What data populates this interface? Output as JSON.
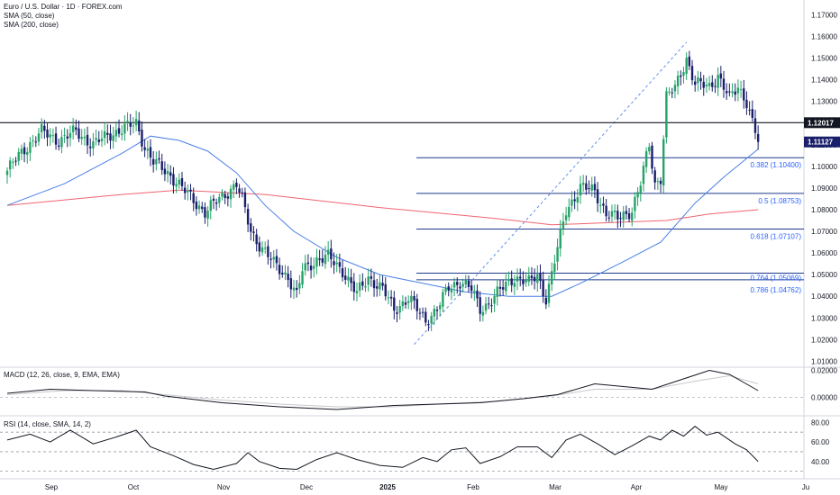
{
  "chart_data": {
    "type": "candlestick",
    "title": "Euro / U.S. Dollar · 1D · FOREX.com",
    "indicators": [
      "SMA (50, close)",
      "SMA (200, close)"
    ],
    "price_axis": {
      "range": [
        1.0085,
        1.1735
      ],
      "ticks": [
        "1.01000",
        "1.02000",
        "1.03000",
        "1.04000",
        "1.05000",
        "1.06000",
        "1.07000",
        "1.08000",
        "1.09000",
        "1.10000",
        "1.11000",
        "1.12000",
        "1.13000",
        "1.14000",
        "1.15000",
        "1.16000",
        "1.17000"
      ]
    },
    "time_axis": [
      "Sep",
      "Oct",
      "Nov",
      "Dec",
      "2025",
      "Feb",
      "Mar",
      "Apr",
      "May",
      "Ju"
    ],
    "price_labels": [
      {
        "text": "1.12017",
        "value": 1.12017,
        "style": "black"
      },
      {
        "text": "1.11127",
        "value": 1.11127,
        "style": "navy"
      }
    ],
    "horizontal_line": 1.12017,
    "fibonacci": [
      {
        "text": "0.382 (1.10400)",
        "value": 1.104
      },
      {
        "text": "0.5 (1.08753)",
        "value": 1.08753
      },
      {
        "text": "0.618 (1.07107)",
        "value": 1.07107
      },
      {
        "text": "0.764 (1.05069)",
        "value": 1.05069
      },
      {
        "text": "0.786 (1.04762)",
        "value": 1.04762
      }
    ],
    "candle_anchors": [
      [
        0,
        1.098
      ],
      [
        6,
        1.108
      ],
      [
        12,
        1.116
      ],
      [
        18,
        1.112
      ],
      [
        24,
        1.116
      ],
      [
        30,
        1.11
      ],
      [
        36,
        1.115
      ],
      [
        42,
        1.118
      ],
      [
        45,
        1.12
      ],
      [
        48,
        1.109
      ],
      [
        51,
        1.102
      ],
      [
        57,
        1.096
      ],
      [
        63,
        1.087
      ],
      [
        69,
        1.079
      ],
      [
        75,
        1.086
      ],
      [
        80,
        1.092
      ],
      [
        82,
        1.084
      ],
      [
        85,
        1.07
      ],
      [
        88,
        1.064
      ],
      [
        93,
        1.055
      ],
      [
        98,
        1.049
      ],
      [
        101,
        1.04
      ],
      [
        103,
        1.052
      ],
      [
        108,
        1.057
      ],
      [
        112,
        1.058
      ],
      [
        117,
        1.052
      ],
      [
        122,
        1.041
      ],
      [
        126,
        1.049
      ],
      [
        131,
        1.043
      ],
      [
        135,
        1.034
      ],
      [
        140,
        1.039
      ],
      [
        143,
        1.034
      ],
      [
        146,
        1.029
      ],
      [
        150,
        1.034
      ],
      [
        154,
        1.044
      ],
      [
        158,
        1.047
      ],
      [
        162,
        1.043
      ],
      [
        165,
        1.034
      ],
      [
        168,
        1.037
      ],
      [
        173,
        1.044
      ],
      [
        177,
        1.049
      ],
      [
        182,
        1.046
      ],
      [
        185,
        1.05
      ],
      [
        188,
        1.039
      ],
      [
        190,
        1.05
      ],
      [
        195,
        1.08
      ],
      [
        200,
        1.09
      ],
      [
        205,
        1.089
      ],
      [
        209,
        1.078
      ],
      [
        213,
        1.076
      ],
      [
        218,
        1.08
      ],
      [
        221,
        1.092
      ],
      [
        224,
        1.11
      ],
      [
        226,
        1.092
      ],
      [
        228,
        1.095
      ],
      [
        230,
        1.132
      ],
      [
        233,
        1.136
      ],
      [
        235,
        1.143
      ],
      [
        237,
        1.15
      ],
      [
        240,
        1.138
      ],
      [
        245,
        1.137
      ],
      [
        248,
        1.142
      ],
      [
        252,
        1.131
      ],
      [
        255,
        1.137
      ],
      [
        258,
        1.13
      ],
      [
        260,
        1.12
      ],
      [
        262,
        1.11127
      ]
    ],
    "sma50": [
      [
        0,
        1.082
      ],
      [
        20,
        1.092
      ],
      [
        40,
        1.106
      ],
      [
        50,
        1.114
      ],
      [
        60,
        1.112
      ],
      [
        70,
        1.107
      ],
      [
        80,
        1.097
      ],
      [
        90,
        1.082
      ],
      [
        100,
        1.07
      ],
      [
        115,
        1.058
      ],
      [
        130,
        1.05
      ],
      [
        145,
        1.046
      ],
      [
        160,
        1.042
      ],
      [
        175,
        1.04
      ],
      [
        190,
        1.04
      ],
      [
        200,
        1.046
      ],
      [
        215,
        1.056
      ],
      [
        228,
        1.065
      ],
      [
        240,
        1.083
      ],
      [
        250,
        1.095
      ],
      [
        262,
        1.108
      ]
    ],
    "sma200": [
      [
        0,
        1.082
      ],
      [
        40,
        1.087
      ],
      [
        60,
        1.089
      ],
      [
        90,
        1.087
      ],
      [
        130,
        1.081
      ],
      [
        170,
        1.076
      ],
      [
        190,
        1.073
      ],
      [
        210,
        1.074
      ],
      [
        230,
        1.075
      ],
      [
        245,
        1.078
      ],
      [
        262,
        1.08
      ]
    ],
    "macd": {
      "label": "MACD (12, 26, close, 9, EMA, EMA)",
      "ticks": [
        "0.02000",
        "0.00000"
      ],
      "range": [
        -0.011,
        0.021
      ],
      "macd_line": [
        [
          0,
          0.003
        ],
        [
          15,
          0.006
        ],
        [
          30,
          0.005
        ],
        [
          48,
          0.004
        ],
        [
          55,
          0.001
        ],
        [
          75,
          -0.004
        ],
        [
          95,
          -0.007
        ],
        [
          115,
          -0.009
        ],
        [
          135,
          -0.006
        ],
        [
          150,
          -0.005
        ],
        [
          165,
          -0.004
        ],
        [
          180,
          -0.001
        ],
        [
          192,
          0.002
        ],
        [
          205,
          0.01
        ],
        [
          215,
          0.008
        ],
        [
          225,
          0.006
        ],
        [
          235,
          0.013
        ],
        [
          245,
          0.02
        ],
        [
          252,
          0.017
        ],
        [
          262,
          0.005
        ]
      ],
      "signal_line": [
        [
          0,
          0.002
        ],
        [
          20,
          0.005
        ],
        [
          40,
          0.005
        ],
        [
          55,
          0.002
        ],
        [
          75,
          -0.002
        ],
        [
          95,
          -0.005
        ],
        [
          115,
          -0.007
        ],
        [
          135,
          -0.007
        ],
        [
          150,
          -0.005
        ],
        [
          170,
          -0.003
        ],
        [
          190,
          0.001
        ],
        [
          205,
          0.006
        ],
        [
          225,
          0.006
        ],
        [
          240,
          0.012
        ],
        [
          252,
          0.016
        ],
        [
          262,
          0.01
        ]
      ]
    },
    "rsi": {
      "label": "RSI (14, close, SMA, 14, 2)",
      "ticks": [
        "80.00",
        "60.00",
        "40.00"
      ],
      "range": [
        26,
        84
      ],
      "bands": [
        70,
        50,
        30
      ],
      "line": [
        [
          0,
          62
        ],
        [
          8,
          68
        ],
        [
          15,
          60
        ],
        [
          22,
          72
        ],
        [
          30,
          58
        ],
        [
          38,
          65
        ],
        [
          45,
          72
        ],
        [
          50,
          55
        ],
        [
          58,
          46
        ],
        [
          65,
          37
        ],
        [
          72,
          32
        ],
        [
          80,
          38
        ],
        [
          84,
          49
        ],
        [
          88,
          40
        ],
        [
          95,
          33
        ],
        [
          101,
          32
        ],
        [
          108,
          42
        ],
        [
          115,
          49
        ],
        [
          122,
          42
        ],
        [
          130,
          36
        ],
        [
          138,
          34
        ],
        [
          145,
          44
        ],
        [
          150,
          40
        ],
        [
          155,
          52
        ],
        [
          160,
          54
        ],
        [
          165,
          38
        ],
        [
          172,
          45
        ],
        [
          178,
          55
        ],
        [
          185,
          55
        ],
        [
          190,
          44
        ],
        [
          195,
          62
        ],
        [
          200,
          68
        ],
        [
          206,
          58
        ],
        [
          212,
          47
        ],
        [
          218,
          56
        ],
        [
          224,
          66
        ],
        [
          228,
          62
        ],
        [
          232,
          72
        ],
        [
          236,
          66
        ],
        [
          240,
          76
        ],
        [
          244,
          67
        ],
        [
          248,
          70
        ],
        [
          254,
          58
        ],
        [
          258,
          52
        ],
        [
          262,
          40
        ]
      ]
    }
  }
}
